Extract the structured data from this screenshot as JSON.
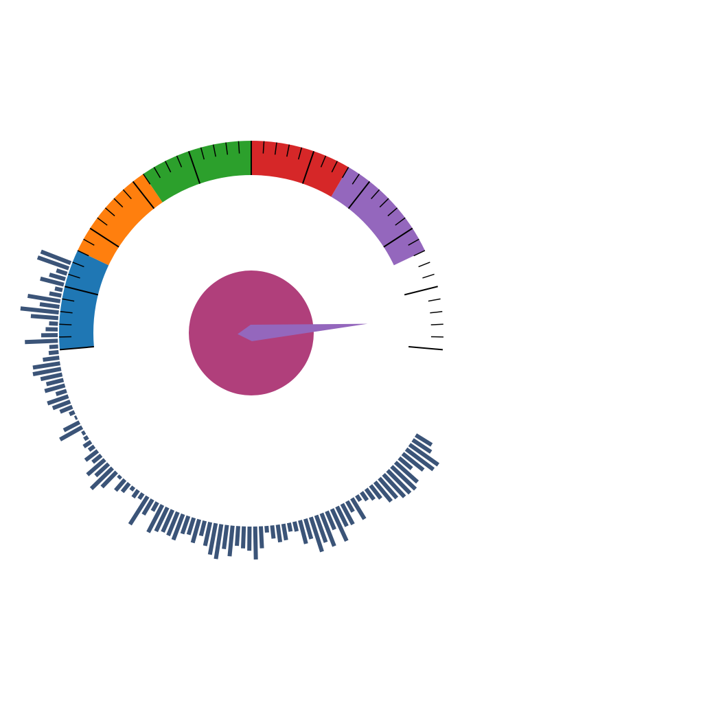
{
  "chart_data": {
    "type": "gauge",
    "title": "",
    "range": [
      0,
      100
    ],
    "sweep_degrees": [
      -95,
      95
    ],
    "value": 95,
    "segments": [
      {
        "from": 0,
        "to": 16,
        "color": "#1f77b4"
      },
      {
        "from": 16,
        "to": 32,
        "color": "#ff7f0e"
      },
      {
        "from": 32,
        "to": 50,
        "color": "#2ca02c"
      },
      {
        "from": 50,
        "to": 66,
        "color": "#d62728"
      },
      {
        "from": 66,
        "to": 84,
        "color": "#9467bd"
      }
    ],
    "major_tick_step": 10,
    "minor_tick_step": 2,
    "needle_color": "#9467bd",
    "hub_color": "#b03f7b",
    "radial_bars": {
      "color": "#3b5478",
      "angle_range_degrees": [
        121,
        292
      ],
      "values": [
        1.7,
        2.0,
        3.2,
        3.1,
        2.4,
        1.5,
        2.7,
        3.0,
        2.9,
        2.8,
        2.4,
        2.3,
        1.5,
        1.2,
        0.9,
        0.6,
        2.2,
        1.1,
        2.1,
        2.0,
        3.2,
        1.8,
        3.2,
        2.6,
        3.3,
        1.9,
        2.2,
        0.9,
        0.8,
        1.5,
        1.6,
        1.2,
        0.6,
        2.0,
        3.0,
        2.2,
        2.0,
        1.8,
        2.8,
        2.2,
        3.2,
        2.9,
        2.2,
        1.4,
        2.2,
        1.6,
        1.7,
        2.5,
        2.3,
        2.2,
        2.4,
        2.8,
        0.9,
        1.6,
        3.0,
        0.6,
        0.8,
        0.4,
        1.0,
        1.3,
        0.3,
        1.9,
        2.7,
        1.6,
        2.1,
        1.0,
        1.4,
        0.6,
        0.8,
        0.4,
        0.3,
        2.3,
        1.6,
        0.2,
        0.5,
        1.2,
        1.7,
        2.0,
        1.0,
        1.9,
        1.6,
        2.0,
        2.6,
        2.5,
        1.5,
        0.9,
        0.8,
        3.0,
        1.5,
        1.1,
        0.8,
        2.5,
        3.5,
        1.8,
        3.0,
        1.1,
        0.7,
        2.2,
        1.5,
        1.0,
        3.0,
        2.9
      ]
    }
  }
}
